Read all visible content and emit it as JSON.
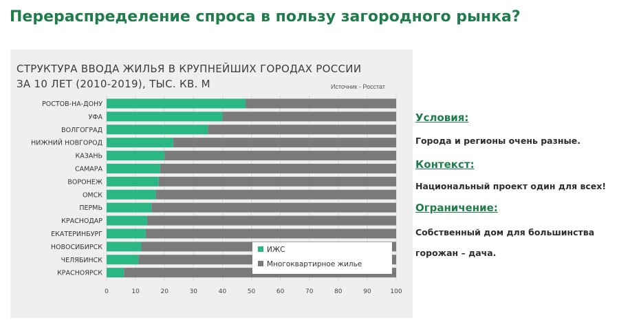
{
  "slide_title": "Перераспределение спроса в пользу загородного рынка?",
  "chart_data": {
    "type": "bar",
    "orientation": "horizontal",
    "stacked": true,
    "title_line1": "СТРУКТУРА ВВОДА ЖИЛЬЯ В КРУПНЕЙШИХ ГОРОДАХ РОССИИ",
    "title_line2": "ЗА 10 ЛЕТ (2010-2019), ТЫС. КВ. М",
    "source": "Источник - Росстат",
    "categories": [
      "РОСТОВ-НА-ДОНУ",
      "УФА",
      "ВОЛГОГРАД",
      "НИЖНИЙ НОВГОРОД",
      "КАЗАНЬ",
      "САМАРА",
      "ВОРОНЕЖ",
      "ОМСК",
      "ПЕРМЬ",
      "КРАСНОДАР",
      "ЕКАТЕРИНБУРГ",
      "НОВОСИБИРСК",
      "ЧЕЛЯБИНСК",
      "КРАСНОЯРСК"
    ],
    "series": [
      {
        "name": "ИЖС",
        "color": "#2bb784",
        "values": [
          48,
          40,
          35,
          23,
          20,
          18.5,
          18,
          17,
          15.5,
          14,
          13.5,
          12,
          11,
          6
        ]
      },
      {
        "name": "Многоквартирное жилье",
        "color": "#7a7a7a",
        "values": [
          52,
          60,
          65,
          77,
          80,
          81.5,
          82,
          83,
          84.5,
          86,
          86.5,
          88,
          89,
          94
        ]
      }
    ],
    "xlim": [
      0,
      100
    ],
    "xticks": [
      0,
      10,
      20,
      30,
      40,
      50,
      60,
      70,
      80,
      90,
      100
    ],
    "legend_position": "bottom-right"
  },
  "notes": {
    "conditions_heading": "Условия:",
    "conditions_text": "Города и регионы очень разные.",
    "context_heading": "Контекст:",
    "context_text": "Национальный проект один для всех!",
    "limitation_heading": "Ограничение:",
    "limitation_text_line1": "Собственный дом для большинства",
    "limitation_text_line2": "горожан – дача."
  }
}
